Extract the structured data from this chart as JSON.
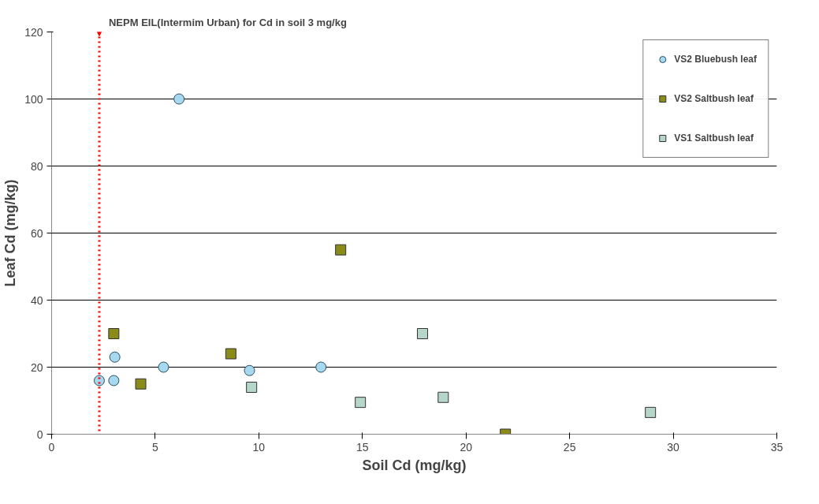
{
  "chart_data": {
    "type": "scatter",
    "xlabel": "Soil Cd (mg/kg)",
    "ylabel": "Leaf Cd (mg/kg)",
    "xlim": [
      0,
      35
    ],
    "xticks": [
      0,
      5,
      10,
      15,
      20,
      25,
      30,
      35
    ],
    "ylim": [
      0,
      120
    ],
    "yticks": [
      0,
      20,
      40,
      60,
      80,
      100,
      120
    ],
    "grid": "y",
    "legend": "top right",
    "series": [
      {
        "name": "VS2 Bluebush leaf",
        "color": "#a6d8f0",
        "marker": "circle",
        "x": [
          2.3,
          3.0,
          3.05,
          5.4,
          6.15,
          9.55,
          13.0
        ],
        "values": [
          16,
          16,
          23,
          20,
          100,
          19,
          20
        ]
      },
      {
        "name": "VS2 Saltbush leaf",
        "color": "#8b8b1a",
        "marker": "square",
        "x": [
          3.0,
          4.3,
          8.65,
          13.95,
          21.9
        ],
        "values": [
          30,
          15,
          24,
          55,
          0
        ]
      },
      {
        "name": "VS1 Saltbush leaf",
        "color": "#b5d6c8",
        "marker": "square",
        "x": [
          9.65,
          14.9,
          17.9,
          18.9,
          28.9
        ],
        "values": [
          14,
          9.5,
          30,
          11,
          6.5
        ]
      }
    ],
    "annotations": [
      {
        "text": "NEPM EIL(Intermim Urban) for Cd in soil 3 mg/kg",
        "x": 2.3,
        "y": 120
      }
    ],
    "ref_lines": [
      {
        "axis": "x",
        "value": 2.3,
        "color": "#ff0000",
        "line_style": "dotted"
      }
    ]
  }
}
